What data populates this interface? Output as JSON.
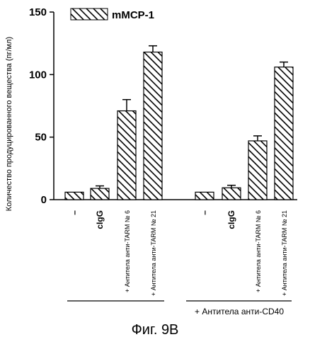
{
  "chart_data": {
    "type": "bar",
    "ylabel": "Количество продуцированного вещества (пг/мл)",
    "ylim": [
      0,
      150
    ],
    "yticks": [
      0,
      50,
      100,
      150
    ],
    "legend": {
      "label": "mMCP-1",
      "placement": "top-left"
    },
    "categories": [
      "–",
      "cIgG",
      "+ Антитела анти-TARM № 6",
      "+ Антитела анти-TARM № 21",
      "–",
      "cIgG",
      "+ Антитела анти-TARM № 6",
      "+ Антитела анти-TARM № 21"
    ],
    "series": [
      {
        "name": "mMCP-1",
        "values": [
          6,
          9,
          71,
          118,
          6,
          9.5,
          47,
          106
        ],
        "errors": [
          0,
          2,
          9,
          5,
          0,
          2,
          4,
          4
        ]
      }
    ],
    "group_label": "+ Антитела анти-CD40",
    "grid": false
  },
  "caption": "Фиг. 9В"
}
